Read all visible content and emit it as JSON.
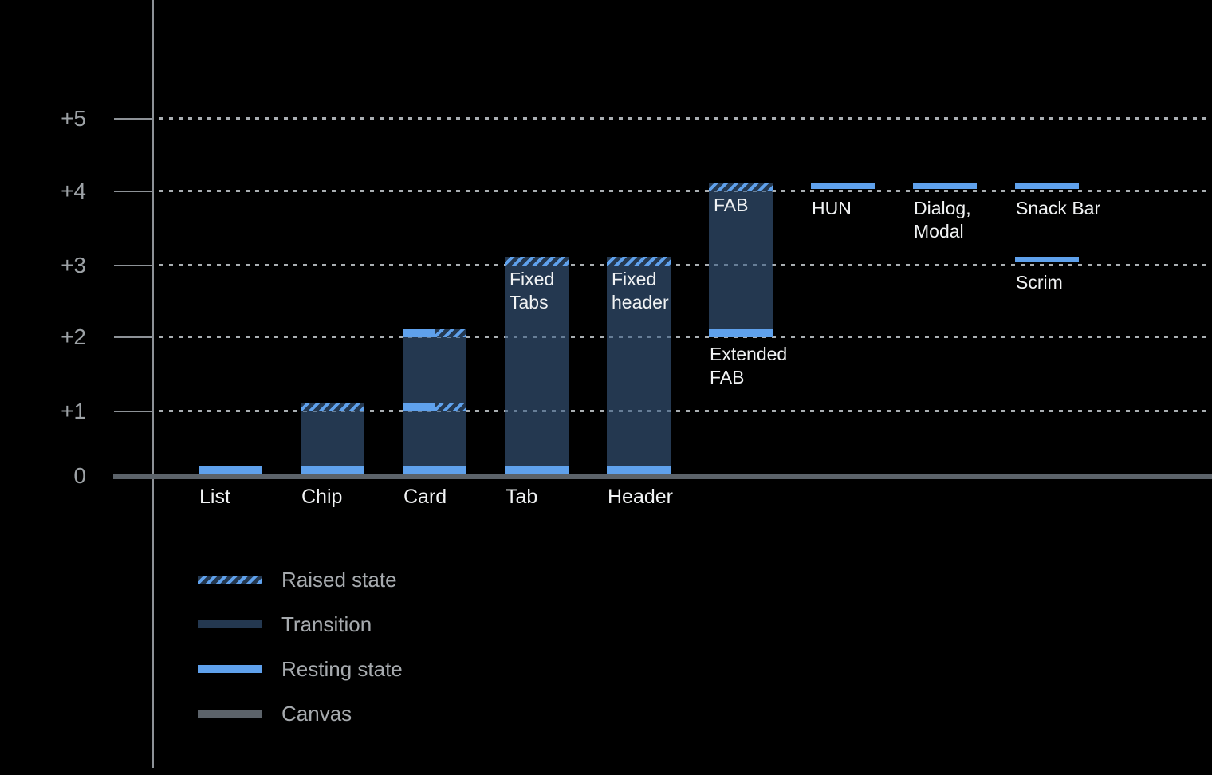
{
  "colors": {
    "background": "#000000",
    "resting_state": "#5fa1ec",
    "transition": "#243850",
    "raised_hatch_stripe": "#5fa1ec",
    "canvas": "#5c636a",
    "axis": "#8d9297",
    "gridline_dots": "#a9aeb2",
    "tick_label_text": "#9da2a6",
    "bar_label_text": "#f1f3f4",
    "legend_text": "#a6aaae"
  },
  "chart_data": {
    "type": "bar",
    "ylabel": "",
    "xlabel": "",
    "ylim": [
      0,
      5.5
    ],
    "grid": "dotted horizontal lines at +1..+5, solid canvas line at 0",
    "legend_position": "bottom-left",
    "y_axis": {
      "ticks": [
        {
          "label": "+5",
          "value": 5
        },
        {
          "label": "+4",
          "value": 4
        },
        {
          "label": "+3",
          "value": 3
        },
        {
          "label": "+2",
          "value": 2
        },
        {
          "label": "+1",
          "value": 1
        },
        {
          "label": "0",
          "value": 0
        }
      ]
    },
    "legend": [
      {
        "label": "Raised state",
        "style": "raised"
      },
      {
        "label": "Transition",
        "style": "transition"
      },
      {
        "label": "Resting state",
        "style": "resting"
      },
      {
        "label": "Canvas",
        "style": "canvas"
      }
    ],
    "bars": [
      {
        "name": "List",
        "col": 0,
        "labels": [
          {
            "text": "List",
            "pos": "axis"
          }
        ],
        "segments": [
          {
            "style": "resting",
            "from": 0.03,
            "to": 0.16,
            "align": "full"
          }
        ]
      },
      {
        "name": "Chip",
        "col": 1,
        "labels": [
          {
            "text": "Chip",
            "pos": "axis"
          }
        ],
        "segments": [
          {
            "style": "transition",
            "from": 0.16,
            "to": 1.0,
            "align": "full"
          },
          {
            "style": "resting",
            "from": 0.03,
            "to": 0.16,
            "align": "full"
          },
          {
            "style": "raised",
            "from": 1.0,
            "to": 1.12,
            "align": "full"
          }
        ]
      },
      {
        "name": "Card",
        "col": 2,
        "labels": [
          {
            "text": "Card",
            "pos": "axis"
          }
        ],
        "segments": [
          {
            "style": "transition",
            "from": 0.16,
            "to": 2.0,
            "align": "full"
          },
          {
            "style": "resting",
            "from": 0.03,
            "to": 0.16,
            "align": "full"
          },
          {
            "style": "resting",
            "from": 1.0,
            "to": 1.12,
            "align": "left"
          },
          {
            "style": "raised",
            "from": 1.0,
            "to": 1.12,
            "align": "right"
          },
          {
            "style": "resting",
            "from": 2.0,
            "to": 2.11,
            "align": "left"
          },
          {
            "style": "raised",
            "from": 2.0,
            "to": 2.11,
            "align": "right"
          }
        ]
      },
      {
        "name": "Tab",
        "col": 3,
        "labels": [
          {
            "text": "Tab",
            "pos": "axis"
          },
          {
            "text": "Fixed\nTabs",
            "pos": "in-top",
            "level": 3
          }
        ],
        "segments": [
          {
            "style": "transition",
            "from": 0.16,
            "to": 3.0,
            "align": "full"
          },
          {
            "style": "resting",
            "from": 0.03,
            "to": 0.16,
            "align": "full"
          },
          {
            "style": "raised",
            "from": 3.0,
            "to": 3.12,
            "align": "full"
          }
        ]
      },
      {
        "name": "Header",
        "col": 4,
        "labels": [
          {
            "text": "Header",
            "pos": "axis"
          },
          {
            "text": "Fixed\nheader",
            "pos": "in-top",
            "level": 3
          }
        ],
        "segments": [
          {
            "style": "transition",
            "from": 0.16,
            "to": 3.0,
            "align": "full"
          },
          {
            "style": "resting",
            "from": 0.03,
            "to": 0.16,
            "align": "full"
          },
          {
            "style": "raised",
            "from": 3.0,
            "to": 3.12,
            "align": "full"
          }
        ]
      },
      {
        "name": "FAB",
        "col": 5,
        "labels": [
          {
            "text": "FAB",
            "pos": "in-top",
            "level": 4
          },
          {
            "text": "Extended\nFAB",
            "pos": "below",
            "level": 2
          }
        ],
        "segments": [
          {
            "style": "transition",
            "from": 2.11,
            "to": 4.0,
            "align": "full"
          },
          {
            "style": "resting",
            "from": 2.0,
            "to": 2.11,
            "align": "full"
          },
          {
            "style": "raised",
            "from": 4.0,
            "to": 4.12,
            "align": "full"
          }
        ]
      },
      {
        "name": "HUN",
        "col": 6,
        "labels": [
          {
            "text": "HUN",
            "pos": "below",
            "level": 4
          }
        ],
        "segments": [
          {
            "style": "resting",
            "from": 4.03,
            "to": 4.12,
            "align": "full"
          }
        ]
      },
      {
        "name": "Dialog, Modal",
        "col": 7,
        "labels": [
          {
            "text": "Dialog,\nModal",
            "pos": "below",
            "level": 4
          }
        ],
        "segments": [
          {
            "style": "resting",
            "from": 4.03,
            "to": 4.12,
            "align": "full"
          }
        ]
      },
      {
        "name": "Snack Bar",
        "col": 8,
        "labels": [
          {
            "text": "Snack Bar",
            "pos": "below",
            "level": 4
          }
        ],
        "segments": [
          {
            "style": "resting",
            "from": 4.03,
            "to": 4.12,
            "align": "full"
          }
        ]
      },
      {
        "name": "Scrim",
        "col": 8,
        "labels": [
          {
            "text": "Scrim",
            "pos": "below",
            "level": 3
          }
        ],
        "segments": [
          {
            "style": "resting",
            "from": 3.04,
            "to": 3.12,
            "align": "full"
          }
        ]
      }
    ]
  }
}
